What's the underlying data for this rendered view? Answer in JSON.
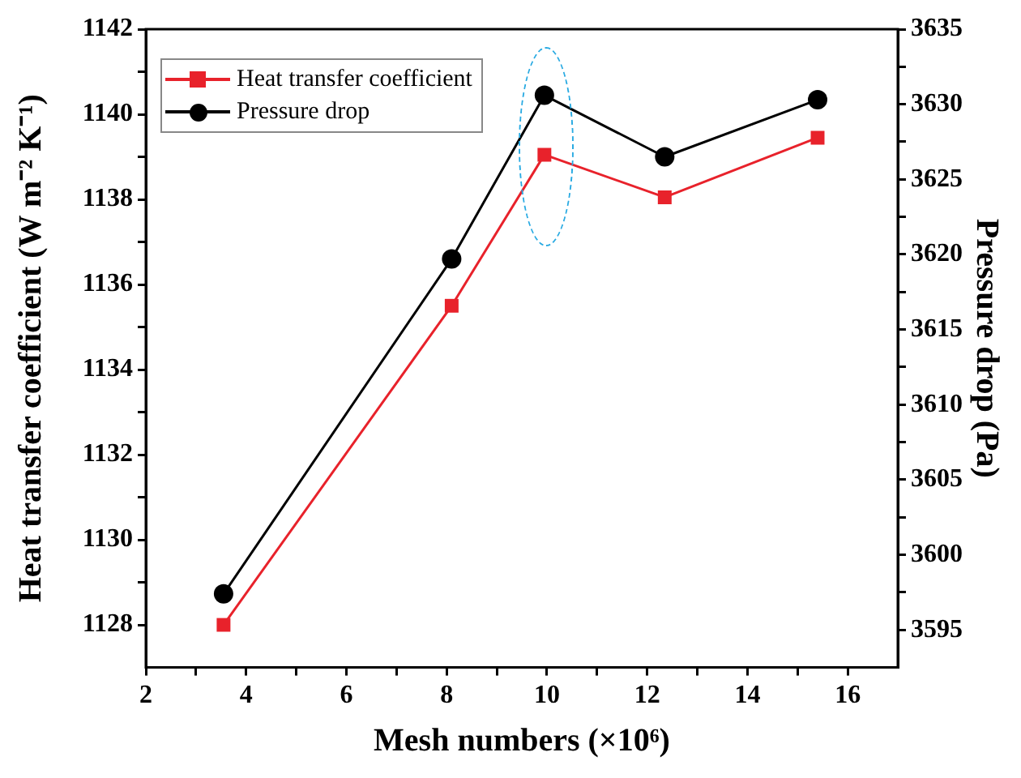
{
  "chart_data": {
    "type": "line",
    "xlabel": "Mesh numbers (×10⁶)",
    "ylabel": "Heat transfer coefficient (W m⁻² K⁻¹)",
    "y2label": "Pressure drop (Pa)",
    "x": [
      3.55,
      8.1,
      9.95,
      12.35,
      15.4
    ],
    "series": [
      {
        "name": "Heat transfer coefficient",
        "color": "#e8222b",
        "marker": "square",
        "values": [
          1128.0,
          1135.5,
          1139.05,
          1138.05,
          1139.45
        ]
      },
      {
        "name": "Pressure drop",
        "color": "#000000",
        "marker": "circle",
        "axis": "y2",
        "values": [
          3597.4,
          3619.7,
          3630.6,
          3626.5,
          3630.3
        ]
      }
    ],
    "xlim": [
      2,
      17
    ],
    "xticks": [
      2,
      {
        "value": 3,
        "label": null
      },
      4,
      {
        "value": 5,
        "label": null
      },
      6,
      {
        "value": 7,
        "label": null
      },
      8,
      {
        "value": 9,
        "label": null
      },
      10,
      {
        "value": 11,
        "label": null
      },
      12,
      {
        "value": 13,
        "label": null
      },
      14,
      {
        "value": 15,
        "label": null
      },
      16
    ],
    "ylim": [
      1127,
      1142
    ],
    "yticks": [
      1128,
      {
        "value": 1129,
        "label": null
      },
      1130,
      {
        "value": 1131,
        "label": null
      },
      1132,
      {
        "value": 1133,
        "label": null
      },
      1134,
      {
        "value": 1135,
        "label": null
      },
      1136,
      {
        "value": 1137,
        "label": null
      },
      1138,
      {
        "value": 1139,
        "label": null
      },
      1140,
      {
        "value": 1141,
        "label": null
      },
      1142
    ],
    "y2lim": [
      3592.5,
      3635
    ],
    "y2ticks": [
      3595,
      {
        "value": 3597.5,
        "label": null
      },
      3600,
      {
        "value": 3602.5,
        "label": null
      },
      3605,
      {
        "value": 3607.5,
        "label": null
      },
      3610,
      {
        "value": 3612.5,
        "label": null
      },
      3615,
      {
        "value": 3617.5,
        "label": null
      },
      3620,
      {
        "value": 3622.5,
        "label": null
      },
      3625,
      {
        "value": 3627.5,
        "label": null
      },
      3630,
      {
        "value": 3632.5,
        "label": null
      },
      3635
    ],
    "grid": false,
    "legend": "top left",
    "line_style": "solid"
  }
}
